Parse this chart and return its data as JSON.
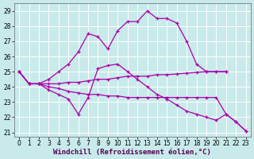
{
  "xlabel": "Windchill (Refroidissement éolien,°C)",
  "background_color": "#c8eaea",
  "line_color": "#aa00aa",
  "xlim_min": -0.5,
  "xlim_max": 23.5,
  "ylim_min": 20.7,
  "ylim_max": 29.5,
  "yticks": [
    21,
    22,
    23,
    24,
    25,
    26,
    27,
    28,
    29
  ],
  "xticks": [
    0,
    1,
    2,
    3,
    4,
    5,
    6,
    7,
    8,
    9,
    10,
    11,
    12,
    13,
    14,
    15,
    16,
    17,
    18,
    19,
    20,
    21,
    22,
    23
  ],
  "curves": [
    {
      "x": [
        0,
        1,
        2,
        3,
        4,
        5,
        6,
        7,
        8,
        9,
        10,
        11,
        12,
        13,
        14,
        15,
        16,
        17,
        18,
        19,
        20,
        21
      ],
      "y": [
        25.0,
        24.2,
        24.2,
        24.5,
        25.0,
        25.5,
        26.3,
        27.5,
        27.3,
        26.5,
        27.7,
        28.3,
        28.3,
        29.0,
        28.5,
        28.5,
        28.2,
        27.0,
        25.5,
        25.0,
        25.0,
        25.0
      ]
    },
    {
      "x": [
        0,
        1,
        2,
        3,
        4,
        5,
        6,
        7,
        8,
        9,
        10,
        11,
        12,
        13,
        14,
        15,
        16,
        17,
        18,
        19,
        20,
        21
      ],
      "y": [
        25.0,
        24.2,
        24.2,
        24.2,
        24.2,
        24.3,
        24.3,
        24.4,
        24.5,
        24.5,
        24.6,
        24.7,
        24.7,
        24.7,
        24.8,
        24.8,
        24.85,
        24.9,
        24.95,
        25.0,
        25.0,
        25.0
      ]
    },
    {
      "x": [
        0,
        1,
        2,
        3,
        4,
        5,
        6,
        7,
        8,
        9,
        10,
        11,
        12,
        13,
        14,
        15,
        16,
        17,
        18,
        19,
        20,
        21,
        22,
        23
      ],
      "y": [
        25.0,
        24.2,
        24.2,
        24.0,
        23.9,
        23.7,
        23.6,
        23.5,
        23.5,
        23.4,
        23.4,
        23.3,
        23.3,
        23.3,
        23.3,
        23.3,
        23.3,
        23.3,
        23.3,
        23.3,
        23.3,
        22.2,
        21.7,
        21.1
      ]
    },
    {
      "x": [
        0,
        1,
        2,
        3,
        4,
        5,
        6,
        7,
        8,
        9,
        10,
        11,
        12,
        13,
        14,
        15,
        16,
        17,
        18,
        19,
        20,
        21,
        22,
        23
      ],
      "y": [
        25.0,
        24.2,
        24.2,
        23.8,
        23.5,
        23.2,
        22.2,
        23.3,
        25.2,
        25.4,
        25.5,
        25.0,
        24.5,
        24.0,
        23.5,
        23.2,
        22.8,
        22.4,
        22.2,
        22.0,
        21.8,
        22.2,
        21.7,
        21.1
      ]
    }
  ],
  "grid_color": "#b8dede",
  "tick_fontsize": 5.5,
  "label_fontsize": 6.5
}
